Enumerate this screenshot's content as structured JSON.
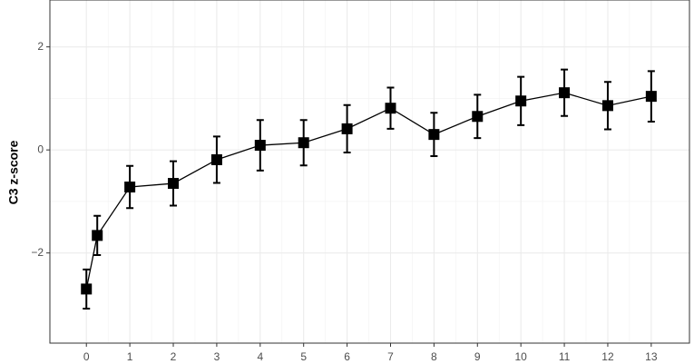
{
  "chart_data": {
    "type": "line",
    "y_label": "C3 z-score",
    "x": [
      0,
      0.25,
      1,
      2,
      3,
      4,
      5,
      6,
      7,
      8,
      9,
      10,
      11,
      12,
      13
    ],
    "series": [
      {
        "color": "#000000",
        "values": [
          -2.7,
          -1.66,
          -0.72,
          -0.65,
          -0.19,
          0.09,
          0.14,
          0.41,
          0.81,
          0.3,
          0.65,
          0.95,
          1.11,
          0.86,
          1.04
        ],
        "errors": [
          0.38,
          0.38,
          0.41,
          0.43,
          0.45,
          0.49,
          0.44,
          0.46,
          0.4,
          0.42,
          0.42,
          0.47,
          0.45,
          0.46,
          0.49
        ]
      }
    ],
    "xlim": [
      -0.84,
      13.88
    ],
    "xticks": [
      0,
      1,
      2,
      3,
      4,
      5,
      6,
      7,
      8,
      9,
      10,
      11,
      12,
      13
    ],
    "ylim": [
      -3.75,
      2.91
    ],
    "yticks": [
      {
        "value": -2,
        "label": "−2"
      },
      0,
      2
    ],
    "grid": true,
    "minor_grid": true
  }
}
